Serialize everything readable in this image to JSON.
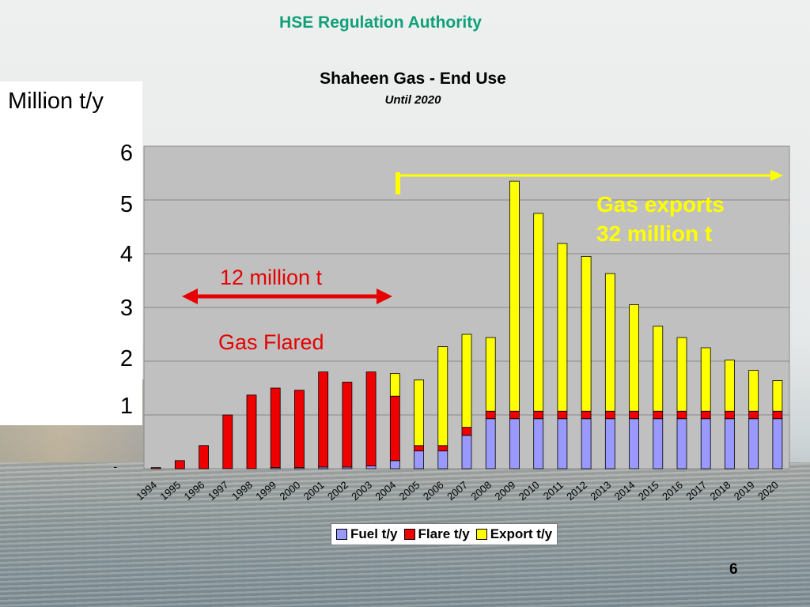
{
  "header": {
    "org": "HSE Regulation Authority"
  },
  "page_number": "6",
  "colors": {
    "fuel": "#9999ff",
    "flare": "#ee0000",
    "export": "#ffff00",
    "plot_bg": "#c0c0c0",
    "header_green": "#0fa07a"
  },
  "annotations": {
    "flared_amount": "12 million t",
    "flared_label": "Gas Flared",
    "export_line1": "Gas exports",
    "export_line2": "32 million t"
  },
  "chart_data": {
    "type": "bar",
    "stacked": true,
    "title": "Shaheen Gas - End Use",
    "subtitle": "Until 2020",
    "ylabel": "Million t/y",
    "xlabel": "",
    "ylim": [
      0,
      6
    ],
    "yticks": [
      "6",
      "5",
      "4",
      "3",
      "2",
      "1",
      "-"
    ],
    "grid": true,
    "legend_position": "bottom",
    "categories": [
      "1994",
      "1995",
      "1996",
      "1997",
      "1998",
      "1999",
      "2000",
      "2001",
      "2002",
      "2003",
      "2004",
      "2005",
      "2006",
      "2007",
      "2008",
      "2009",
      "2010",
      "2011",
      "2012",
      "2013",
      "2014",
      "2015",
      "2016",
      "2017",
      "2018",
      "2019",
      "2020"
    ],
    "series": [
      {
        "name": "Fuel t/y",
        "values": [
          0,
          0,
          0,
          0,
          0,
          0.02,
          0.02,
          0.03,
          0.03,
          0.05,
          0.15,
          0.33,
          0.33,
          0.62,
          0.93,
          0.93,
          0.93,
          0.93,
          0.93,
          0.93,
          0.93,
          0.93,
          0.93,
          0.93,
          0.93,
          0.93,
          0.93
        ]
      },
      {
        "name": "Flare t/y",
        "values": [
          0.02,
          0.15,
          0.43,
          1.0,
          1.37,
          1.48,
          1.44,
          1.77,
          1.58,
          1.75,
          1.2,
          0.1,
          0.1,
          0.15,
          0.14,
          0.14,
          0.14,
          0.14,
          0.14,
          0.14,
          0.14,
          0.14,
          0.14,
          0.14,
          0.14,
          0.14,
          0.14
        ]
      },
      {
        "name": "Export t/y",
        "values": [
          0,
          0,
          0,
          0,
          0,
          0,
          0,
          0,
          0,
          0,
          0.42,
          1.22,
          1.84,
          1.73,
          1.37,
          4.28,
          3.68,
          3.12,
          2.88,
          2.56,
          1.98,
          1.58,
          1.37,
          1.18,
          0.95,
          0.76,
          0.57
        ]
      }
    ]
  }
}
